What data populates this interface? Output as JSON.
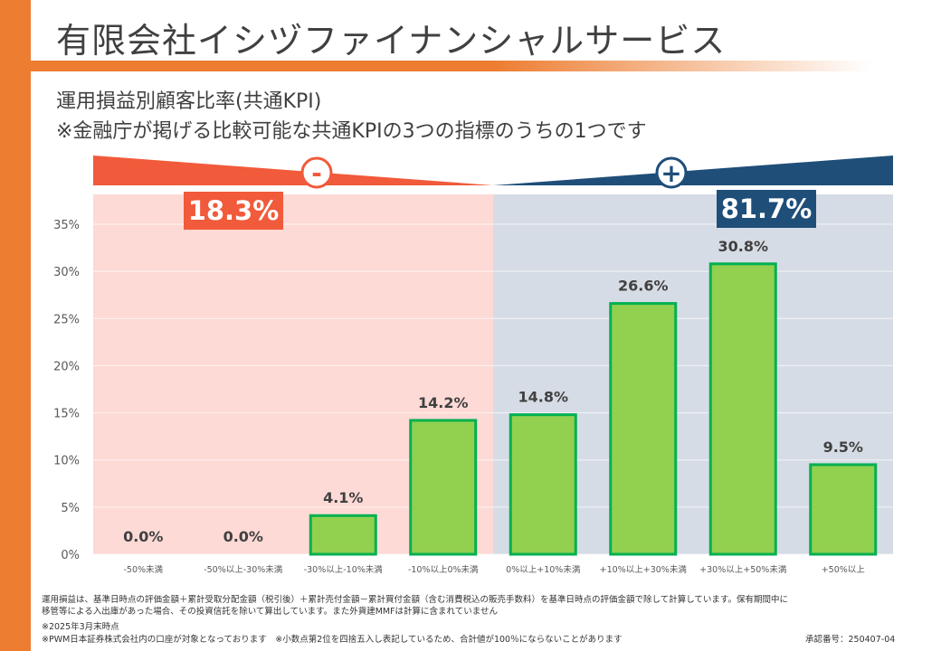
{
  "header": {
    "title": "有限会社イシヅファイナンシャルサービス",
    "subtitle_1": "運用損益別顧客比率(共通KPI)",
    "subtitle_2": "※金融庁が掲げる比較可能な共通KPIの3つの指標のうちの1つです"
  },
  "summary": {
    "negative_symbol": "-",
    "negative_total": "18.3%",
    "positive_symbol": "+",
    "positive_total": "81.7%"
  },
  "colors": {
    "accent_orange": "#ed7d31",
    "negative_red": "#f15a3a",
    "negative_zone": "#fddad5",
    "positive_navy": "#1f4e79",
    "positive_zone": "#d6dce5",
    "bar_fill": "#92d050",
    "bar_border": "#00b050"
  },
  "chart_data": {
    "type": "bar",
    "categories": [
      "-50%未満",
      "-50%以上-30%未満",
      "-30%以上-10%未満",
      "-10%以上0%未満",
      "0%以上+10%未満",
      "+10%以上+30%未満",
      "+30%以上+50%未満",
      "+50%以上"
    ],
    "values": [
      0.0,
      0.0,
      4.1,
      14.2,
      14.8,
      26.6,
      30.8,
      9.5
    ],
    "data_labels": [
      "0.0%",
      "0.0%",
      "4.1%",
      "14.2%",
      "14.8%",
      "26.6%",
      "30.8%",
      "9.5%"
    ],
    "y_ticks": [
      "0%",
      "5%",
      "10%",
      "15%",
      "20%",
      "25%",
      "30%",
      "35%"
    ],
    "ylim": [
      0,
      35
    ],
    "grid": true,
    "legend": "none",
    "title": "",
    "xlabel": "",
    "ylabel": ""
  },
  "footnotes": {
    "line1": "運用損益は、基準日時点の評価金額＋累計受取分配金額（税引後）＋累計売付金額－累計買付金額（含む消費税込の販売手数料）を基準日時点の評価金額で除して計算しています。保有期間中に",
    "line2": "移管等による入出庫があった場合、その投資信託を除いて算出しています。また外貨建MMFは計算に含まれていません",
    "line3": "※2025年3月末時点",
    "line4": "※PWM日本証券株式会社内の口座が対象となっております　※小数点第2位を四捨五入し表記しているため、合計値が100％にならないことがあります",
    "approval": "承認番号：250407-04"
  }
}
